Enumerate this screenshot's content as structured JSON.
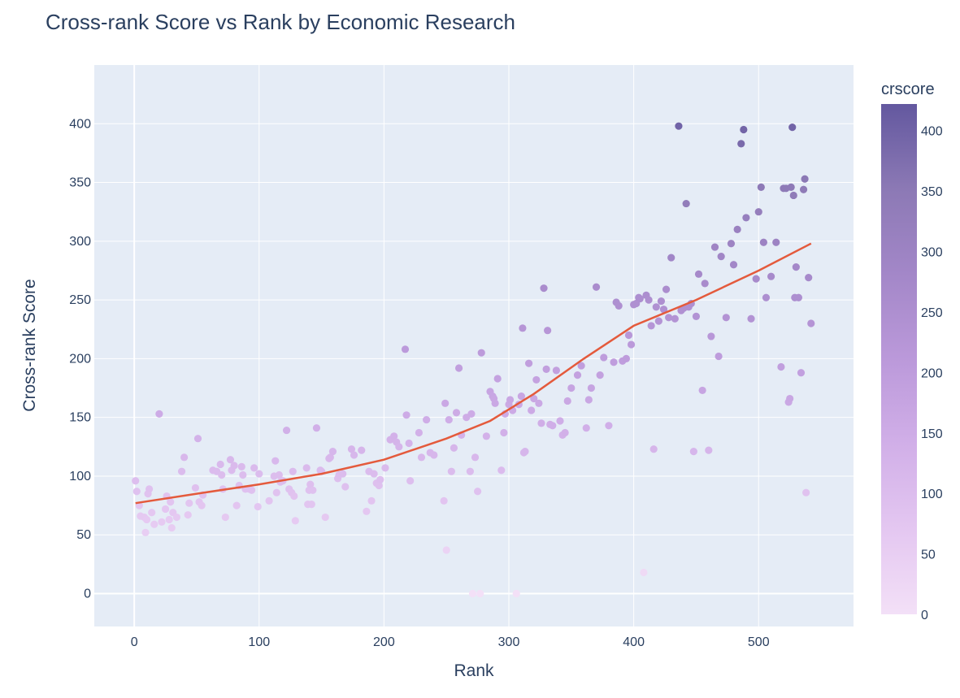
{
  "chart_data": {
    "type": "scatter",
    "title": "Cross-rank Score vs Rank by Economic Research",
    "xlabel": "Rank",
    "ylabel": "Cross-rank Score",
    "xlim": [
      -32,
      576
    ],
    "ylim": [
      -28,
      450
    ],
    "x_ticks": [
      0,
      100,
      200,
      300,
      400,
      500
    ],
    "y_ticks": [
      0,
      50,
      100,
      150,
      200,
      250,
      300,
      350,
      400
    ],
    "grid": true,
    "colorbar": {
      "title": "crscore",
      "range": [
        0,
        422
      ],
      "ticks": [
        0,
        50,
        100,
        150,
        200,
        250,
        300,
        350,
        400
      ],
      "colors": [
        "#f3e0f7",
        "#e4c7f1",
        "#d1afe8",
        "#bb99da",
        "#a387c8",
        "#8c79b5",
        "#63589f"
      ]
    },
    "trendline": {
      "color": "#e45a3c",
      "x": [
        1,
        50,
        100,
        150,
        200,
        250,
        285,
        320,
        360,
        400,
        450,
        500,
        542
      ],
      "y": [
        77,
        85,
        93,
        102,
        114,
        132,
        147,
        170,
        200,
        228,
        250,
        275,
        298
      ]
    },
    "points": {
      "x": [
        1,
        2,
        4,
        5,
        8,
        9,
        10,
        11,
        12,
        14,
        16,
        20,
        22,
        25,
        26,
        28,
        29,
        30,
        31,
        34,
        38,
        40,
        43,
        44,
        49,
        51,
        52,
        54,
        55,
        63,
        66,
        69,
        70,
        71,
        73,
        77,
        78,
        80,
        82,
        84,
        86,
        87,
        89,
        92,
        94,
        96,
        99,
        100,
        108,
        112,
        113,
        114,
        116,
        117,
        119,
        122,
        124,
        126,
        127,
        128,
        129,
        138,
        139,
        140,
        141,
        142,
        143,
        146,
        149,
        150,
        153,
        156,
        157,
        159,
        163,
        164,
        167,
        169,
        174,
        176,
        182,
        186,
        188,
        190,
        192,
        194,
        196,
        197,
        201,
        205,
        208,
        210,
        212,
        217,
        218,
        220,
        221,
        228,
        230,
        234,
        237,
        240,
        248,
        249,
        250,
        252,
        254,
        256,
        258,
        260,
        262,
        266,
        269,
        270,
        271,
        273,
        275,
        277,
        278,
        282,
        285,
        287,
        288,
        289,
        291,
        294,
        296,
        297,
        300,
        301,
        303,
        306,
        308,
        310,
        311,
        312,
        313,
        316,
        318,
        320,
        322,
        324,
        326,
        328,
        330,
        331,
        333,
        335,
        338,
        341,
        343,
        345,
        347,
        350,
        355,
        358,
        362,
        364,
        366,
        370,
        373,
        376,
        380,
        384,
        386,
        388,
        391,
        394,
        396,
        398,
        400,
        402,
        404,
        405,
        408,
        410,
        412,
        414,
        416,
        418,
        420,
        422,
        424,
        426,
        428,
        430,
        433,
        436,
        438,
        440,
        442,
        444,
        446,
        448,
        450,
        452,
        455,
        457,
        460,
        462,
        465,
        468,
        470,
        474,
        478,
        480,
        483,
        486,
        488,
        490,
        494,
        498,
        500,
        502,
        504,
        506,
        510,
        514,
        518,
        520,
        522,
        524,
        525,
        526,
        527,
        528,
        529,
        530,
        532,
        534,
        536,
        537,
        538,
        540,
        542
      ],
      "y": [
        96,
        87,
        75,
        66,
        65,
        52,
        63,
        85,
        89,
        69,
        59,
        153,
        61,
        72,
        83,
        63,
        78,
        56,
        69,
        65,
        104,
        116,
        67,
        77,
        90,
        132,
        78,
        75,
        84,
        105,
        104,
        110,
        101,
        89,
        65,
        114,
        105,
        109,
        75,
        92,
        108,
        101,
        89,
        89,
        88,
        107,
        74,
        102,
        79,
        100,
        113,
        86,
        101,
        95,
        96,
        139,
        89,
        86,
        104,
        83,
        62,
        107,
        76,
        88,
        93,
        76,
        88,
        141,
        105,
        104,
        65,
        115,
        116,
        121,
        98,
        101,
        102,
        91,
        123,
        118,
        122,
        70,
        104,
        79,
        102,
        94,
        92,
        97,
        107,
        131,
        134,
        129,
        125,
        208,
        152,
        128,
        96,
        137,
        116,
        148,
        120,
        118,
        79,
        162,
        37,
        148,
        104,
        124,
        154,
        192,
        135,
        150,
        104,
        153,
        0,
        116,
        87,
        0,
        205,
        134,
        172,
        168,
        166,
        162,
        183,
        105,
        137,
        153,
        161,
        165,
        156,
        0,
        161,
        168,
        226,
        120,
        121,
        196,
        156,
        166,
        182,
        162,
        145,
        260,
        191,
        224,
        144,
        143,
        190,
        147,
        135,
        137,
        164,
        175,
        186,
        194,
        141,
        165,
        175,
        261,
        186,
        201,
        143,
        197,
        248,
        245,
        198,
        200,
        220,
        212,
        246,
        247,
        252,
        251,
        18,
        254,
        250,
        228,
        123,
        244,
        232,
        249,
        242,
        259,
        235,
        286,
        234,
        398,
        241,
        243,
        332,
        244,
        247,
        121,
        236,
        272,
        173,
        264,
        122,
        219,
        295,
        202,
        287,
        235,
        298,
        280,
        310,
        383,
        395,
        320,
        234,
        268,
        325,
        346,
        299,
        252,
        270,
        299,
        193,
        345,
        345,
        163,
        166,
        346,
        397,
        339,
        252,
        278,
        252,
        188,
        344,
        353,
        86,
        269,
        230
      ],
      "color": [
        96,
        87,
        75,
        66,
        65,
        52,
        63,
        85,
        89,
        69,
        59,
        153,
        61,
        72,
        83,
        63,
        78,
        56,
        69,
        65,
        104,
        116,
        67,
        77,
        90,
        132,
        78,
        75,
        84,
        105,
        104,
        110,
        101,
        89,
        65,
        114,
        105,
        109,
        75,
        92,
        108,
        101,
        89,
        89,
        88,
        107,
        74,
        102,
        79,
        100,
        113,
        86,
        101,
        95,
        96,
        139,
        89,
        86,
        104,
        83,
        62,
        107,
        76,
        88,
        93,
        76,
        88,
        141,
        105,
        104,
        65,
        115,
        116,
        121,
        98,
        101,
        102,
        91,
        123,
        118,
        122,
        70,
        104,
        79,
        102,
        94,
        92,
        97,
        107,
        131,
        134,
        129,
        125,
        208,
        152,
        128,
        96,
        137,
        116,
        148,
        120,
        118,
        79,
        162,
        37,
        148,
        104,
        124,
        154,
        192,
        135,
        150,
        104,
        153,
        0,
        116,
        87,
        0,
        205,
        134,
        172,
        168,
        166,
        162,
        183,
        105,
        137,
        153,
        161,
        165,
        156,
        0,
        161,
        168,
        226,
        120,
        121,
        196,
        156,
        166,
        182,
        162,
        145,
        260,
        191,
        224,
        144,
        143,
        190,
        147,
        135,
        137,
        164,
        175,
        186,
        194,
        141,
        165,
        175,
        261,
        186,
        201,
        143,
        197,
        248,
        245,
        198,
        200,
        220,
        212,
        246,
        247,
        252,
        251,
        18,
        254,
        250,
        228,
        123,
        244,
        232,
        249,
        242,
        259,
        235,
        286,
        234,
        398,
        241,
        243,
        332,
        244,
        247,
        121,
        236,
        272,
        173,
        264,
        122,
        219,
        295,
        202,
        287,
        235,
        298,
        280,
        310,
        383,
        395,
        320,
        234,
        268,
        325,
        346,
        299,
        252,
        270,
        299,
        193,
        345,
        345,
        163,
        166,
        346,
        397,
        339,
        252,
        278,
        252,
        188,
        344,
        353,
        86,
        269,
        230
      ]
    }
  }
}
